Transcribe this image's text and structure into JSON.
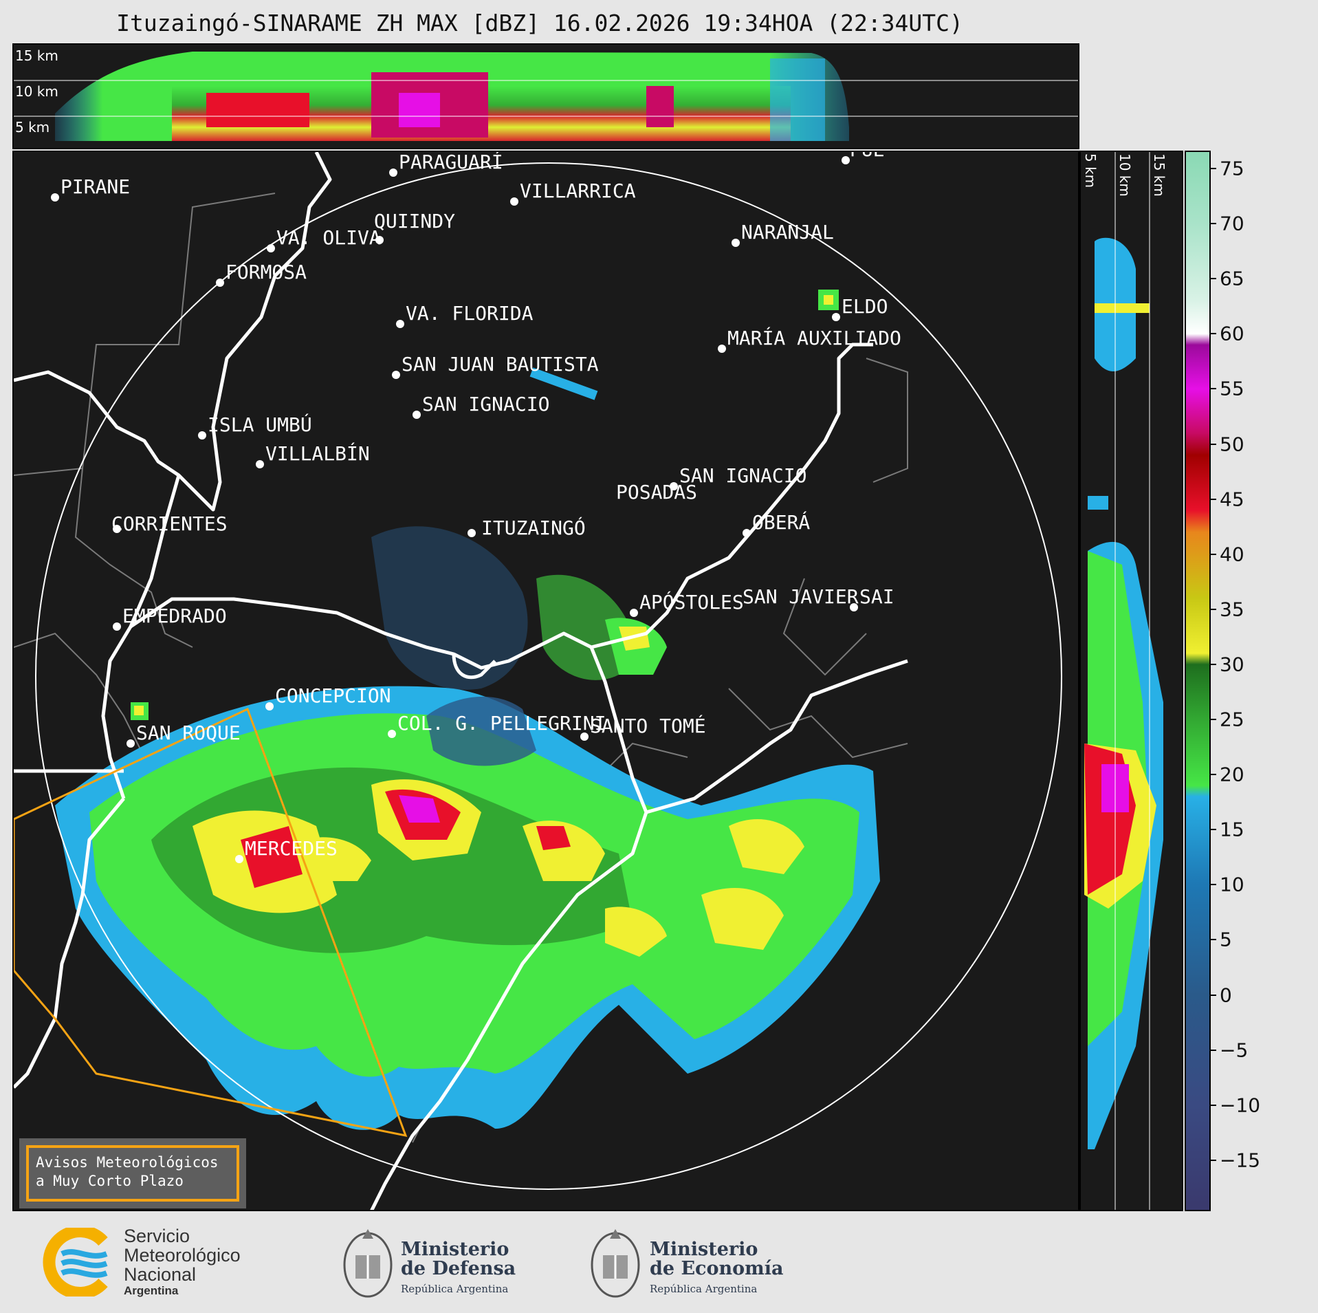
{
  "title": "Ituzaingó-SINARAME ZH MAX [dBZ] 16.02.2026 19:34HOA (22:34UTC)",
  "profile_heights": [
    "15 km",
    "10 km",
    "5 km"
  ],
  "cities": [
    {
      "name": "PARAGUARÍ"
    },
    {
      "name": "PIRANE"
    },
    {
      "name": "VILLARRICA"
    },
    {
      "name": "QUIINDY"
    },
    {
      "name": "VA. OLIVA"
    },
    {
      "name": "NARANJAL"
    },
    {
      "name": "FORMOSA"
    },
    {
      "name": "PUE"
    },
    {
      "name": "ELDO"
    },
    {
      "name": "VA. FLORIDA"
    },
    {
      "name": "MARÍA AUXILIADO"
    },
    {
      "name": "SAN JUAN BAUTISTA"
    },
    {
      "name": "SAN IGNACIO"
    },
    {
      "name": "ISLA UMBÚ"
    },
    {
      "name": "VILLALBÍN"
    },
    {
      "name": "SAN IGNACIO"
    },
    {
      "name": "POSADAS"
    },
    {
      "name": "CORRIENTES"
    },
    {
      "name": "ITUZAINGÓ"
    },
    {
      "name": "OBERÁ"
    },
    {
      "name": "EMPEDRADO"
    },
    {
      "name": "APÓSTOLES"
    },
    {
      "name": "SAN JAVIER"
    },
    {
      "name": "SAI"
    },
    {
      "name": "CONCEPCION"
    },
    {
      "name": "COL. G. PELLEGRINI"
    },
    {
      "name": "SANTO TOMÉ"
    },
    {
      "name": "SAN ROQUE"
    },
    {
      "name": "MERCEDES"
    }
  ],
  "colorbar": {
    "unit": "dBZ",
    "ticks": [
      "75",
      "70",
      "65",
      "60",
      "55",
      "50",
      "45",
      "40",
      "35",
      "30",
      "25",
      "20",
      "15",
      "10",
      "5",
      "0",
      "−5",
      "−10",
      "−15"
    ],
    "stops": [
      {
        "v": 76.5,
        "c": "#8ad9b4"
      },
      {
        "v": 70,
        "c": "#a9e3c9"
      },
      {
        "v": 63,
        "c": "#d9f2e6"
      },
      {
        "v": 60,
        "c": "#ffffff"
      },
      {
        "v": 59,
        "c": "#9b0a9b"
      },
      {
        "v": 55,
        "c": "#e60fe6"
      },
      {
        "v": 51,
        "c": "#c80a64"
      },
      {
        "v": 49,
        "c": "#a00000"
      },
      {
        "v": 44,
        "c": "#e8102a"
      },
      {
        "v": 42,
        "c": "#e8861c"
      },
      {
        "v": 36,
        "c": "#c8c814"
      },
      {
        "v": 31,
        "c": "#f0f032"
      },
      {
        "v": 30,
        "c": "#1e6e1e"
      },
      {
        "v": 25,
        "c": "#32a832"
      },
      {
        "v": 19,
        "c": "#46e646"
      },
      {
        "v": 18,
        "c": "#28b0e6"
      },
      {
        "v": 10,
        "c": "#1e78b4"
      },
      {
        "v": 0,
        "c": "#2a5a8a"
      },
      {
        "v": -10,
        "c": "#3a4a82"
      },
      {
        "v": -19,
        "c": "#3a3a6e"
      }
    ],
    "min": -19.5,
    "max": 76.5
  },
  "warning": {
    "line1": "Avisos Meteorológicos",
    "line2": "a Muy Corto Plazo"
  },
  "footer": {
    "smn": [
      "Servicio",
      "Meteorológico",
      "Nacional",
      "Argentina"
    ],
    "defensa": [
      "Ministerio",
      "de Defensa",
      "República Argentina"
    ],
    "economia": [
      "Ministerio",
      "de Economía",
      "República Argentina"
    ]
  }
}
